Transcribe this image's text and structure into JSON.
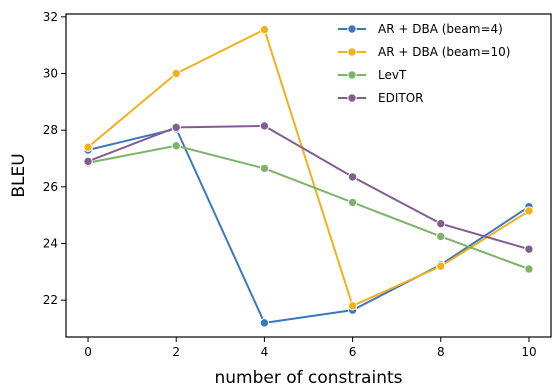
{
  "chart_data": {
    "type": "line",
    "title": "",
    "xlabel": "number of constraints",
    "ylabel": "BLEU",
    "x": [
      0,
      2,
      4,
      6,
      8,
      10
    ],
    "xlim": [
      -0.5,
      10.5
    ],
    "ylim": [
      20.7,
      32.1
    ],
    "xticks": [
      0,
      2,
      4,
      6,
      8,
      10
    ],
    "yticks": [
      22,
      24,
      26,
      28,
      30,
      32
    ],
    "grid": false,
    "legend_position": "top-right",
    "series": [
      {
        "name": "AR + DBA (beam=4)",
        "color": "#3a78bd",
        "values": [
          27.3,
          28.05,
          21.2,
          21.65,
          23.25,
          25.3
        ]
      },
      {
        "name": "AR + DBA (beam=10)",
        "color": "#f2b01e",
        "values": [
          27.4,
          30.0,
          31.55,
          21.8,
          23.2,
          25.15
        ]
      },
      {
        "name": "LevT",
        "color": "#7db36a",
        "values": [
          26.85,
          27.45,
          26.65,
          25.45,
          24.25,
          23.1
        ]
      },
      {
        "name": "EDITOR",
        "color": "#825d91",
        "values": [
          26.9,
          28.1,
          28.15,
          26.35,
          24.7,
          23.8
        ]
      }
    ]
  }
}
